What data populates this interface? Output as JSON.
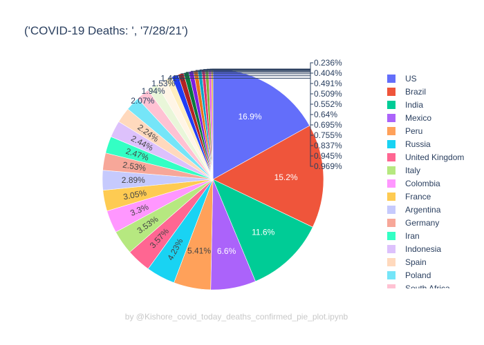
{
  "chart_data": {
    "type": "pie",
    "title": "('COVID-19 Deaths: ', '7/28/21')",
    "footer": "by @Kishore_covid_today_deaths_confirmed_pie_plot.ipynb",
    "legend_position": "right",
    "slices": [
      {
        "name": "US",
        "percent": 16.9,
        "label": "16.9%",
        "color": "#636efa"
      },
      {
        "name": "Brazil",
        "percent": 15.2,
        "label": "15.2%",
        "color": "#EF553B"
      },
      {
        "name": "India",
        "percent": 11.6,
        "label": "11.6%",
        "color": "#00cc96"
      },
      {
        "name": "Mexico",
        "percent": 6.6,
        "label": "6.6%",
        "color": "#ab63fa"
      },
      {
        "name": "Peru",
        "percent": 5.41,
        "label": "5.41%",
        "color": "#FFA15A"
      },
      {
        "name": "Russia",
        "percent": 4.23,
        "label": "4.23%",
        "color": "#19d3f3"
      },
      {
        "name": "United Kingdom",
        "percent": 3.57,
        "label": "3.57%",
        "color": "#FF6692"
      },
      {
        "name": "Italy",
        "percent": 3.53,
        "label": "3.53%",
        "color": "#B6E880"
      },
      {
        "name": "Colombia",
        "percent": 3.3,
        "label": "3.3%",
        "color": "#FF97FF"
      },
      {
        "name": "France",
        "percent": 3.05,
        "label": "3.05%",
        "color": "#FECB52"
      },
      {
        "name": "Argentina",
        "percent": 2.89,
        "label": "2.89%",
        "color": "#c6cafd"
      },
      {
        "name": "Germany",
        "percent": 2.53,
        "label": "2.53%",
        "color": "#f7a799"
      },
      {
        "name": "Iran",
        "percent": 2.47,
        "label": "2.47%",
        "color": "#33ffc4"
      },
      {
        "name": "Indonesia",
        "percent": 2.44,
        "label": "2.44%",
        "color": "#ddc1fc"
      },
      {
        "name": "Spain",
        "percent": 2.24,
        "label": "2.24%",
        "color": "#ffd9bd"
      },
      {
        "name": "Poland",
        "percent": 2.07,
        "label": "2.07%",
        "color": "#75e5f8"
      },
      {
        "name": "South Africa",
        "percent": 1.94,
        "label": "1.94%",
        "color": "#ffc2d3"
      },
      {
        "name": "",
        "percent": 1.53,
        "label": "1.53%",
        "color": "#e9f6d9"
      },
      {
        "name": "",
        "percent": 1.41,
        "label": "1.41%",
        "color": "#fff5e6"
      },
      {
        "name": "",
        "percent": 0.969,
        "label": "0.969%",
        "color": "#ffeebe"
      },
      {
        "name": "",
        "percent": 0.945,
        "label": "0.945%",
        "color": "#1f3cf5"
      },
      {
        "name": "",
        "percent": 0.837,
        "label": "0.837%",
        "color": "#b22222"
      },
      {
        "name": "",
        "percent": 0.755,
        "label": "0.755%",
        "color": "#0a7a3c"
      },
      {
        "name": "",
        "percent": 0.695,
        "label": "0.695%",
        "color": "#7c1fe0"
      },
      {
        "name": "",
        "percent": 0.64,
        "label": "0.64%",
        "color": "#e8731a"
      },
      {
        "name": "",
        "percent": 0.552,
        "label": "0.552%",
        "color": "#0ea5c6"
      },
      {
        "name": "",
        "percent": 0.509,
        "label": "0.509%",
        "color": "#e0306a"
      },
      {
        "name": "",
        "percent": 0.491,
        "label": "0.491%",
        "color": "#7fb03a"
      },
      {
        "name": "",
        "percent": 0.404,
        "label": "0.404%",
        "color": "#e45be4"
      },
      {
        "name": "",
        "percent": 0.236,
        "label": "0.236%",
        "color": "#d8a820"
      }
    ]
  }
}
